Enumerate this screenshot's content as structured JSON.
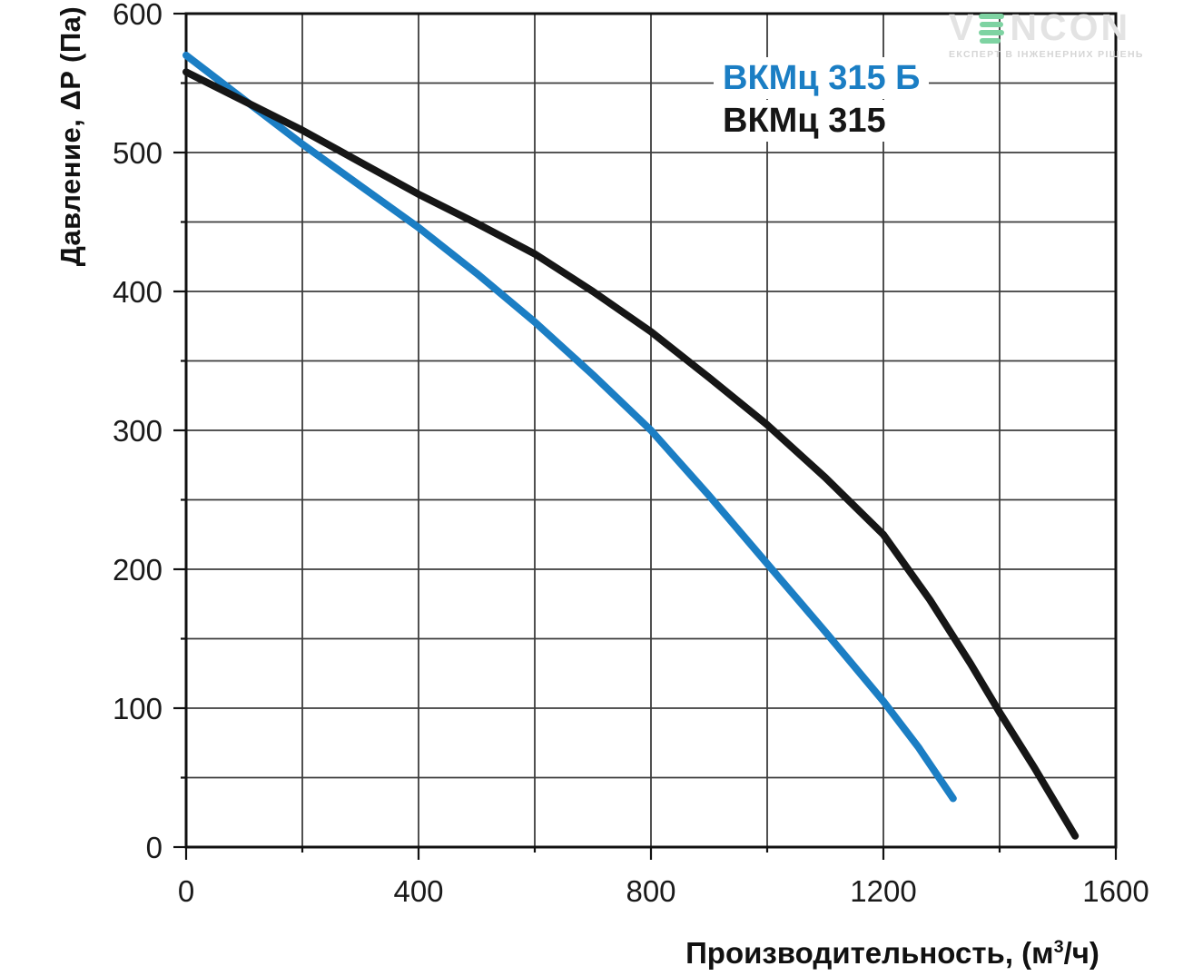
{
  "chart_data": {
    "type": "line",
    "title": "",
    "xlabel": "Производительность, (м³/ч)",
    "xlabel_parts": {
      "pre": "Производительность, (м",
      "sup": "3",
      "post": "/ч)"
    },
    "ylabel": "Давление, ΔP (Па)",
    "xlim": [
      0,
      1600
    ],
    "ylim": [
      0,
      600
    ],
    "x_major_ticks": [
      0,
      400,
      800,
      1200,
      1600
    ],
    "x_grid_step": 200,
    "y_major_ticks": [
      0,
      100,
      200,
      300,
      400,
      500,
      600
    ],
    "y_grid_step": 50,
    "grid": true,
    "legend_position": "top-right-inside",
    "series": [
      {
        "name": "ВКМц 315 Б",
        "color": "#1b7ec4",
        "x_units": "м³/ч",
        "y_units": "Па",
        "points": [
          [
            0,
            570
          ],
          [
            100,
            538
          ],
          [
            200,
            506
          ],
          [
            300,
            476
          ],
          [
            400,
            446
          ],
          [
            500,
            413
          ],
          [
            600,
            378
          ],
          [
            700,
            340
          ],
          [
            800,
            300
          ],
          [
            900,
            253
          ],
          [
            1000,
            204
          ],
          [
            1100,
            155
          ],
          [
            1200,
            105
          ],
          [
            1260,
            72
          ],
          [
            1320,
            35
          ]
        ]
      },
      {
        "name": "ВКМц 315",
        "color": "#161616",
        "x_units": "м³/ч",
        "y_units": "Па",
        "points": [
          [
            0,
            558
          ],
          [
            100,
            537
          ],
          [
            200,
            516
          ],
          [
            300,
            493
          ],
          [
            400,
            470
          ],
          [
            500,
            449
          ],
          [
            600,
            427
          ],
          [
            700,
            400
          ],
          [
            800,
            371
          ],
          [
            900,
            338
          ],
          [
            1000,
            304
          ],
          [
            1100,
            266
          ],
          [
            1200,
            225
          ],
          [
            1280,
            178
          ],
          [
            1350,
            132
          ],
          [
            1400,
            97
          ],
          [
            1460,
            57
          ],
          [
            1530,
            8
          ]
        ]
      }
    ],
    "grid_color": "#3d3d3d",
    "axis_color": "#111111",
    "tick_label_color": "#1a1a1a"
  },
  "logo": {
    "wordmark_prefix": "V",
    "wordmark_suffix": "NCON",
    "tagline": "ЕКСПЕРТ В ІНЖЕНЕРНИХ РІШЕНЬ",
    "green": "#7ed3a2",
    "gray": "#e3e3e3"
  }
}
